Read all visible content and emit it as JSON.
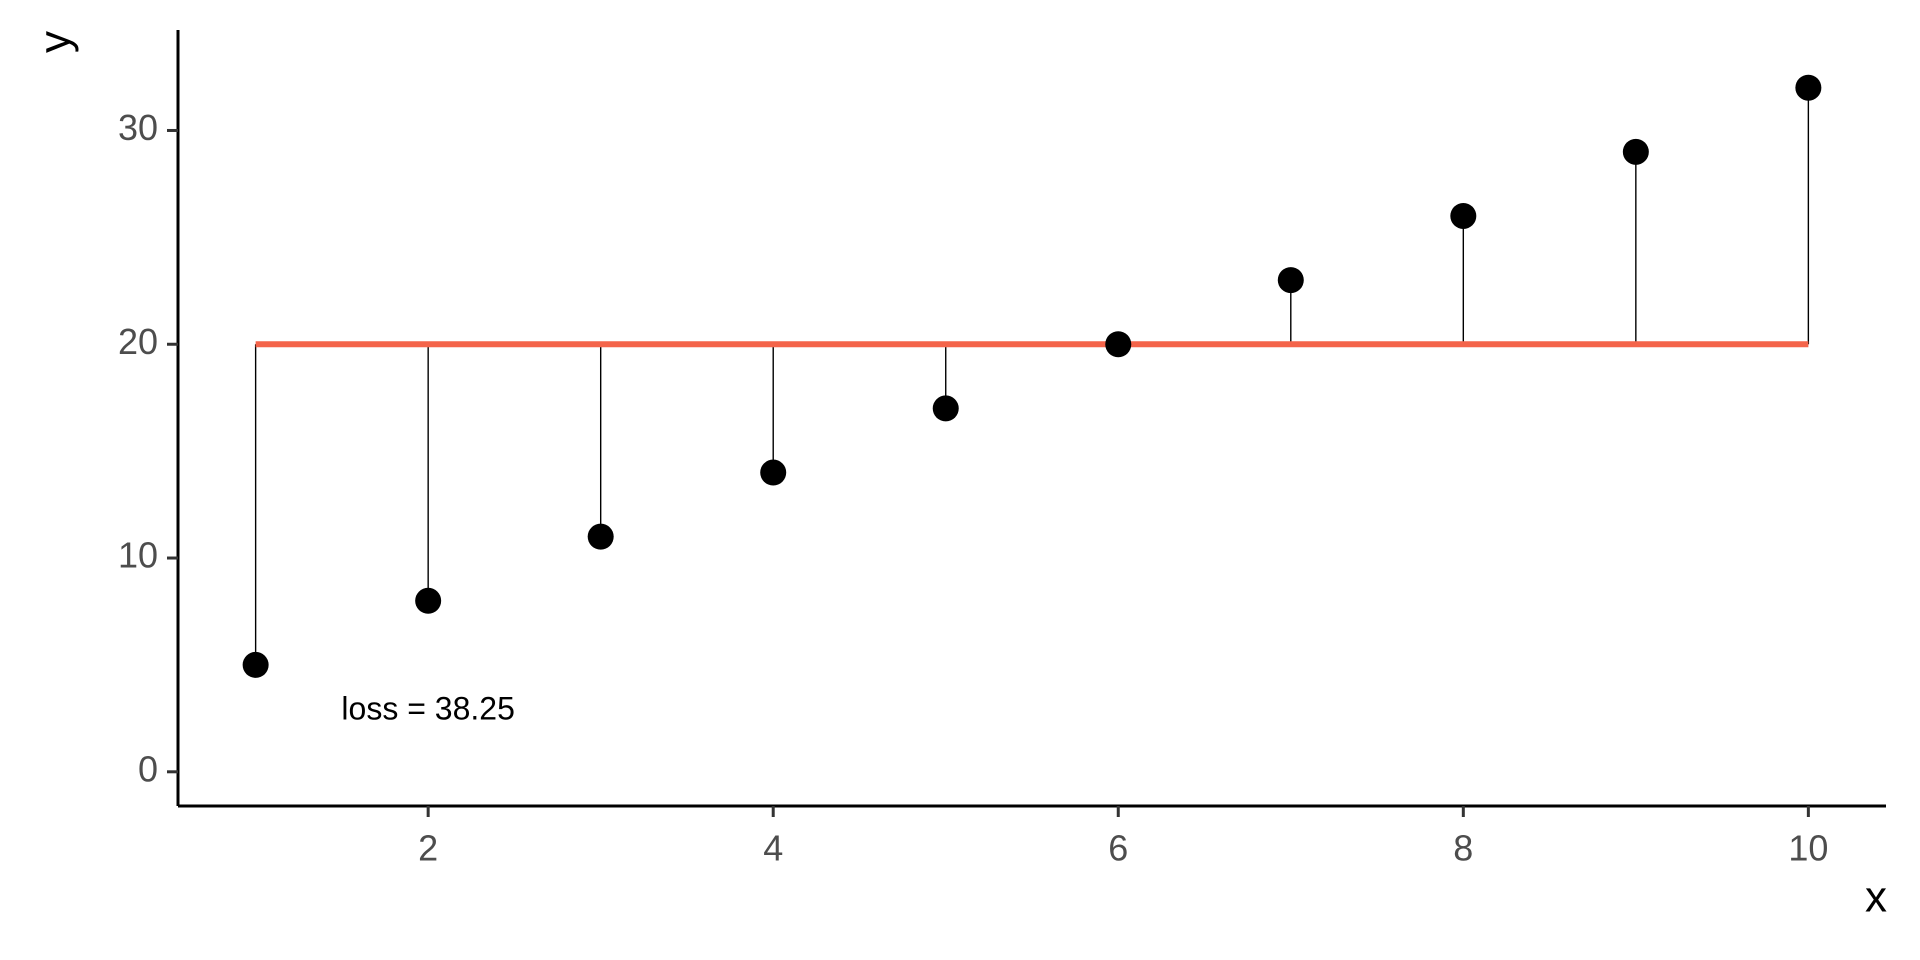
{
  "chart_data": {
    "type": "scatter",
    "x_label": "x",
    "y_label": "y",
    "x": [
      1,
      2,
      3,
      4,
      5,
      6,
      7,
      8,
      9,
      10
    ],
    "series": [
      {
        "color": "#000000",
        "values": [
          5,
          8,
          11,
          14,
          17,
          20,
          23,
          26,
          29,
          32
        ]
      }
    ],
    "reference_line": {
      "value": 20,
      "color": "#F4644A"
    },
    "annotation": "loss = 38.25",
    "xlim": [
      0.55,
      10.45
    ],
    "ylim": [
      -1.6,
      34.7
    ],
    "xticks": [
      2,
      4,
      6,
      8,
      10
    ],
    "yticks": [
      0,
      10,
      20,
      30
    ],
    "grid": false
  }
}
